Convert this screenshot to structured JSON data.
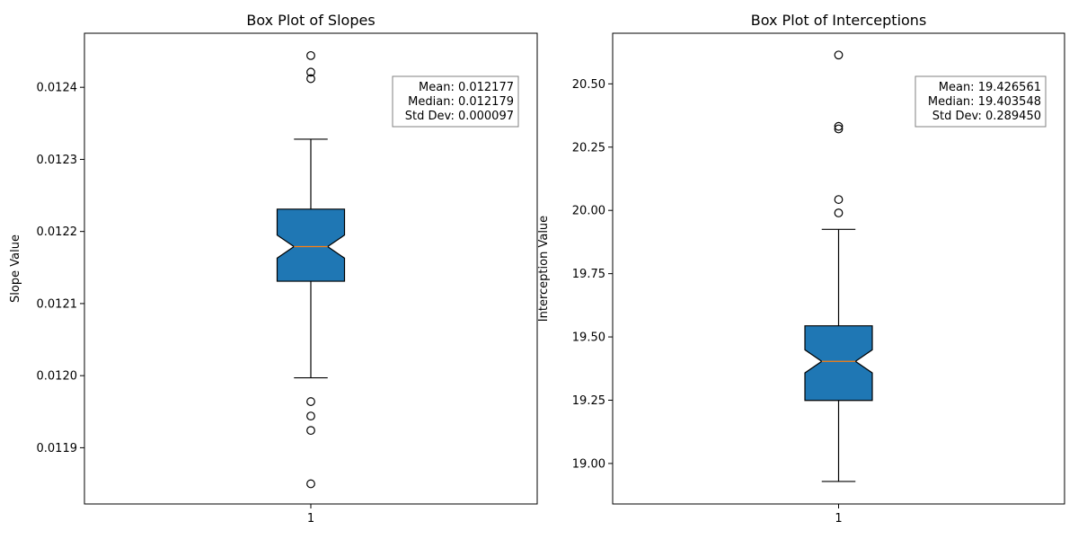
{
  "chart_data": [
    {
      "type": "box",
      "title": "Box Plot of Slopes",
      "xlabel": "",
      "ylabel": "Slope Value",
      "categories": [
        "1"
      ],
      "ylim": [
        0.011822,
        0.012475
      ],
      "yticks": [
        0.0119,
        0.012,
        0.0121,
        0.0122,
        0.0123,
        0.0124
      ],
      "ytick_labels": [
        "0.0119",
        "0.0120",
        "0.0121",
        "0.0122",
        "0.0123",
        "0.0124"
      ],
      "notched": true,
      "box_color": "#1f77b4",
      "median_color": "#ff7f0e",
      "box": {
        "q1": 0.012131,
        "median": 0.012179,
        "q3": 0.012231,
        "notch_low": 0.012163,
        "notch_high": 0.012195,
        "whisker_low": 0.011997,
        "whisker_high": 0.012328
      },
      "outliers": [
        0.011964,
        0.011944,
        0.011924,
        0.01185,
        0.012444,
        0.012421,
        0.012412
      ],
      "stats_lines": [
        "Mean: 0.012177",
        "Median: 0.012179",
        "Std Dev: 0.000097"
      ]
    },
    {
      "type": "box",
      "title": "Box Plot of Interceptions",
      "xlabel": "",
      "ylabel": "Interception Value",
      "categories": [
        "1"
      ],
      "ylim": [
        18.84,
        20.7
      ],
      "yticks": [
        19.0,
        19.25,
        19.5,
        19.75,
        20.0,
        20.25,
        20.5
      ],
      "ytick_labels": [
        "19.00",
        "19.25",
        "19.50",
        "19.75",
        "20.00",
        "20.25",
        "20.50"
      ],
      "notched": true,
      "box_color": "#1f77b4",
      "median_color": "#ff7f0e",
      "box": {
        "q1": 19.249,
        "median": 19.4035,
        "q3": 19.544,
        "notch_low": 19.358,
        "notch_high": 19.449,
        "whisker_low": 18.929,
        "whisker_high": 19.925
      },
      "outliers": [
        20.614,
        20.332,
        20.322,
        20.043,
        19.99
      ],
      "stats_lines": [
        "Mean: 19.426561",
        "Median: 19.403548",
        "Std Dev: 0.289450"
      ]
    }
  ]
}
